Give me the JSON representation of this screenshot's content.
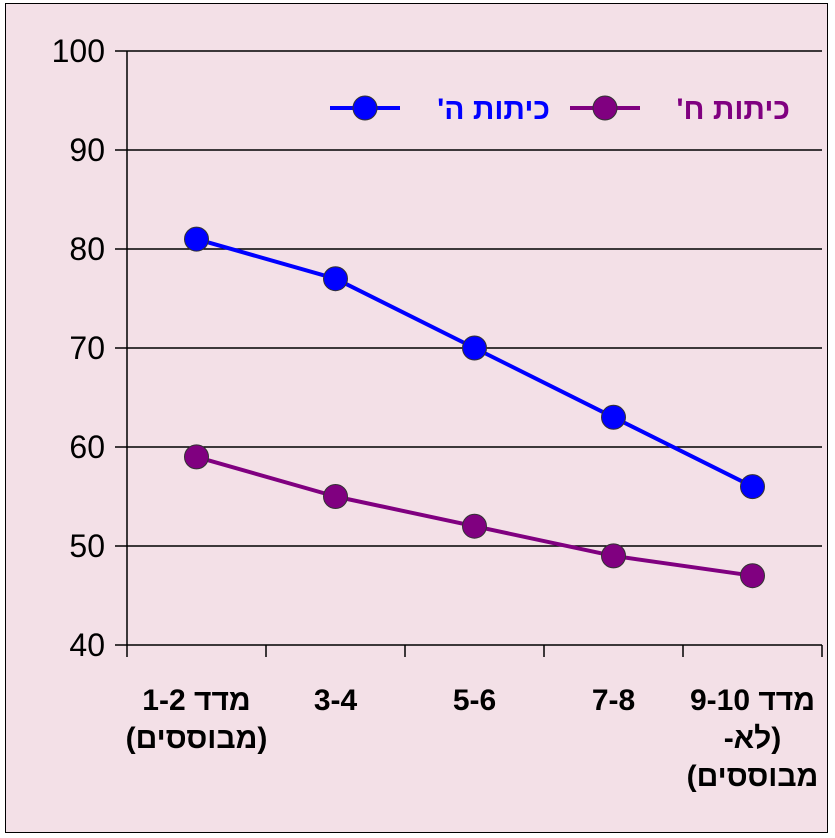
{
  "chart_data": {
    "type": "line",
    "categories": [
      [
        "מדד 1-2",
        "(מבוססים)"
      ],
      [
        "3-4"
      ],
      [
        "5-6"
      ],
      [
        "7-8"
      ],
      [
        "מדד 9-10",
        "(לא-",
        "מבוססים)"
      ]
    ],
    "series": [
      {
        "name": "כיתות ה'",
        "color": "#0000ff",
        "values": [
          81,
          77,
          70,
          63,
          56
        ]
      },
      {
        "name": "כיתות ח'",
        "color": "#800080",
        "values": [
          59,
          55,
          52,
          49,
          47
        ]
      }
    ],
    "title": "",
    "xlabel": "",
    "ylabel": "",
    "ylim": [
      40,
      100
    ],
    "yticks": [
      40,
      50,
      60,
      70,
      80,
      90,
      100
    ],
    "grid": true,
    "legend": "top-right",
    "colors": {
      "background": "#f3e0e7",
      "axis": "#000000"
    }
  }
}
